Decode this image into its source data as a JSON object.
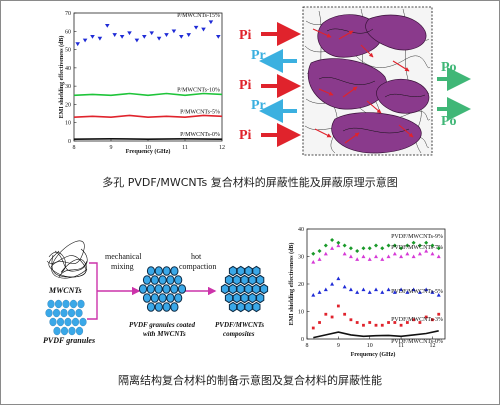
{
  "captions": {
    "top": "多孔 PVDF/MWCNTs 复合材料的屏蔽性能及屏蔽原理示意图",
    "bottom": "隔离结构复合材料的制备示意图及复合材料的屏蔽性能"
  },
  "schematic_top": {
    "labels": [
      "Pi",
      "Pr",
      "Pi",
      "Pr",
      "Pi",
      "Po",
      "Po"
    ],
    "colors": {
      "incident": "#e0232c",
      "reflected": "#3bb0e0",
      "outgoing": "#40b777",
      "pore": "#8a3a8c"
    }
  },
  "schematic_bottom": {
    "mwcnts": "MWCNTs",
    "pvdf_granules": "PVDF granules",
    "step1": [
      "mechanical",
      "mixing"
    ],
    "step2": [
      "hot",
      "compaction"
    ],
    "coated": [
      "PVDF granules coated",
      "with MWCNTs"
    ],
    "composites": [
      "PVDF/MWCNTs",
      "composites"
    ]
  },
  "chart_data": [
    {
      "type": "scatter",
      "xlabel": "Frequency (GHz)",
      "ylabel": "EMI shielding effectiveness (dB)",
      "xlim": [
        8,
        12
      ],
      "ylim": [
        0,
        70
      ],
      "xticks": [
        8,
        9,
        10,
        11,
        12
      ],
      "yticks": [
        0,
        10,
        20,
        30,
        40,
        50,
        60,
        70
      ],
      "series": [
        {
          "name": "P/MWCNTs-15%",
          "color": "#1f2bd6",
          "marker": "triangle-down",
          "x": [
            8.1,
            8.3,
            8.5,
            8.7,
            8.9,
            9.1,
            9.3,
            9.5,
            9.7,
            9.9,
            10.1,
            10.3,
            10.5,
            10.7,
            10.9,
            11.1,
            11.3,
            11.5,
            11.7,
            11.9
          ],
          "y": [
            53,
            55,
            57,
            56,
            63,
            58,
            57,
            59,
            55,
            57,
            59,
            56,
            58,
            60,
            57,
            58,
            62,
            61,
            65,
            57
          ]
        },
        {
          "name": "P/MWCNTs-10%",
          "color": "#1fc43a",
          "marker": "line",
          "x": [
            8.0,
            8.5,
            9.0,
            9.5,
            10.0,
            10.5,
            11.0,
            11.5,
            12.0
          ],
          "y": [
            25,
            25.5,
            25,
            26,
            25,
            26,
            25,
            26,
            25.5
          ]
        },
        {
          "name": "P/MWCNTs-5%",
          "color": "#e0232c",
          "marker": "line",
          "x": [
            8.0,
            8.5,
            9.0,
            9.5,
            10.0,
            10.5,
            11.0,
            11.5,
            12.0
          ],
          "y": [
            13,
            13.5,
            13,
            14,
            13,
            13.5,
            13,
            14,
            13.5
          ]
        },
        {
          "name": "P/MWCNTs-0%",
          "color": "#111111",
          "marker": "line",
          "x": [
            8.0,
            9.0,
            10.0,
            11.0,
            12.0
          ],
          "y": [
            1,
            1.2,
            1,
            1.2,
            1
          ]
        }
      ]
    },
    {
      "type": "scatter",
      "xlabel": "Frequency (GHz)",
      "ylabel": "EMI shielding effectiveness (dB)",
      "xlim": [
        8,
        12.4
      ],
      "ylim": [
        0,
        40
      ],
      "xticks": [
        8,
        9,
        10,
        11,
        12
      ],
      "yticks": [
        0,
        10,
        20,
        30,
        40
      ],
      "series": [
        {
          "name": "PVDF/MWCNTs-0%",
          "color": "#111111",
          "marker": "line",
          "x": [
            8.2,
            8.6,
            9.0,
            9.4,
            9.8,
            10.2,
            10.6,
            11.0,
            11.4,
            11.8,
            12.2
          ],
          "y": [
            0.5,
            1.5,
            2.5,
            1.5,
            1,
            1.2,
            1.3,
            1,
            1.5,
            2,
            3
          ]
        },
        {
          "name": "PVDF/MWCNTs-3%",
          "color": "#e0232c",
          "marker": "square",
          "x": [
            8.2,
            8.4,
            8.6,
            8.8,
            9.0,
            9.2,
            9.4,
            9.6,
            9.8,
            10.0,
            10.2,
            10.4,
            10.6,
            10.8,
            11.0,
            11.2,
            11.4,
            11.6,
            11.8,
            12.0,
            12.2
          ],
          "y": [
            4,
            6,
            9,
            8,
            12,
            9,
            7,
            6,
            5,
            6,
            5,
            5,
            6,
            6,
            5,
            6,
            7,
            6,
            8,
            7,
            9
          ]
        },
        {
          "name": "PVDF/MWCNTs-5%",
          "color": "#1f2bd6",
          "marker": "triangle",
          "x": [
            8.2,
            8.4,
            8.6,
            8.8,
            9.0,
            9.2,
            9.4,
            9.6,
            9.8,
            10.0,
            10.2,
            10.4,
            10.6,
            10.8,
            11.0,
            11.2,
            11.4,
            11.6,
            11.8,
            12.0,
            12.2
          ],
          "y": [
            16,
            17,
            18,
            20,
            22,
            19,
            18,
            17,
            18,
            17,
            18,
            17,
            18,
            17,
            18,
            17,
            18,
            17,
            18,
            17,
            16
          ]
        },
        {
          "name": "PVDF/MWCNTs-7%",
          "color": "#d63ad6",
          "marker": "triangle",
          "x": [
            8.2,
            8.4,
            8.6,
            8.8,
            9.0,
            9.2,
            9.4,
            9.6,
            9.8,
            10.0,
            10.2,
            10.4,
            10.6,
            10.8,
            11.0,
            11.2,
            11.4,
            11.6,
            11.8,
            12.0,
            12.2
          ],
          "y": [
            28,
            29,
            31,
            33,
            34,
            31,
            30,
            29,
            30,
            29,
            30,
            29,
            30,
            31,
            30,
            31,
            30,
            31,
            32,
            31,
            30
          ]
        },
        {
          "name": "PVDF/MWCNTs-9%",
          "color": "#1a9a2a",
          "marker": "diamond",
          "x": [
            8.2,
            8.4,
            8.6,
            8.8,
            9.0,
            9.2,
            9.4,
            9.6,
            9.8,
            10.0,
            10.2,
            10.4,
            10.6,
            10.8,
            11.0,
            11.2,
            11.4,
            11.6,
            11.8,
            12.0,
            12.2
          ],
          "y": [
            31,
            32,
            34,
            36,
            35,
            34,
            33,
            32,
            33,
            33,
            34,
            33,
            34,
            34,
            33,
            34,
            35,
            34,
            35,
            34,
            33
          ]
        }
      ]
    }
  ]
}
